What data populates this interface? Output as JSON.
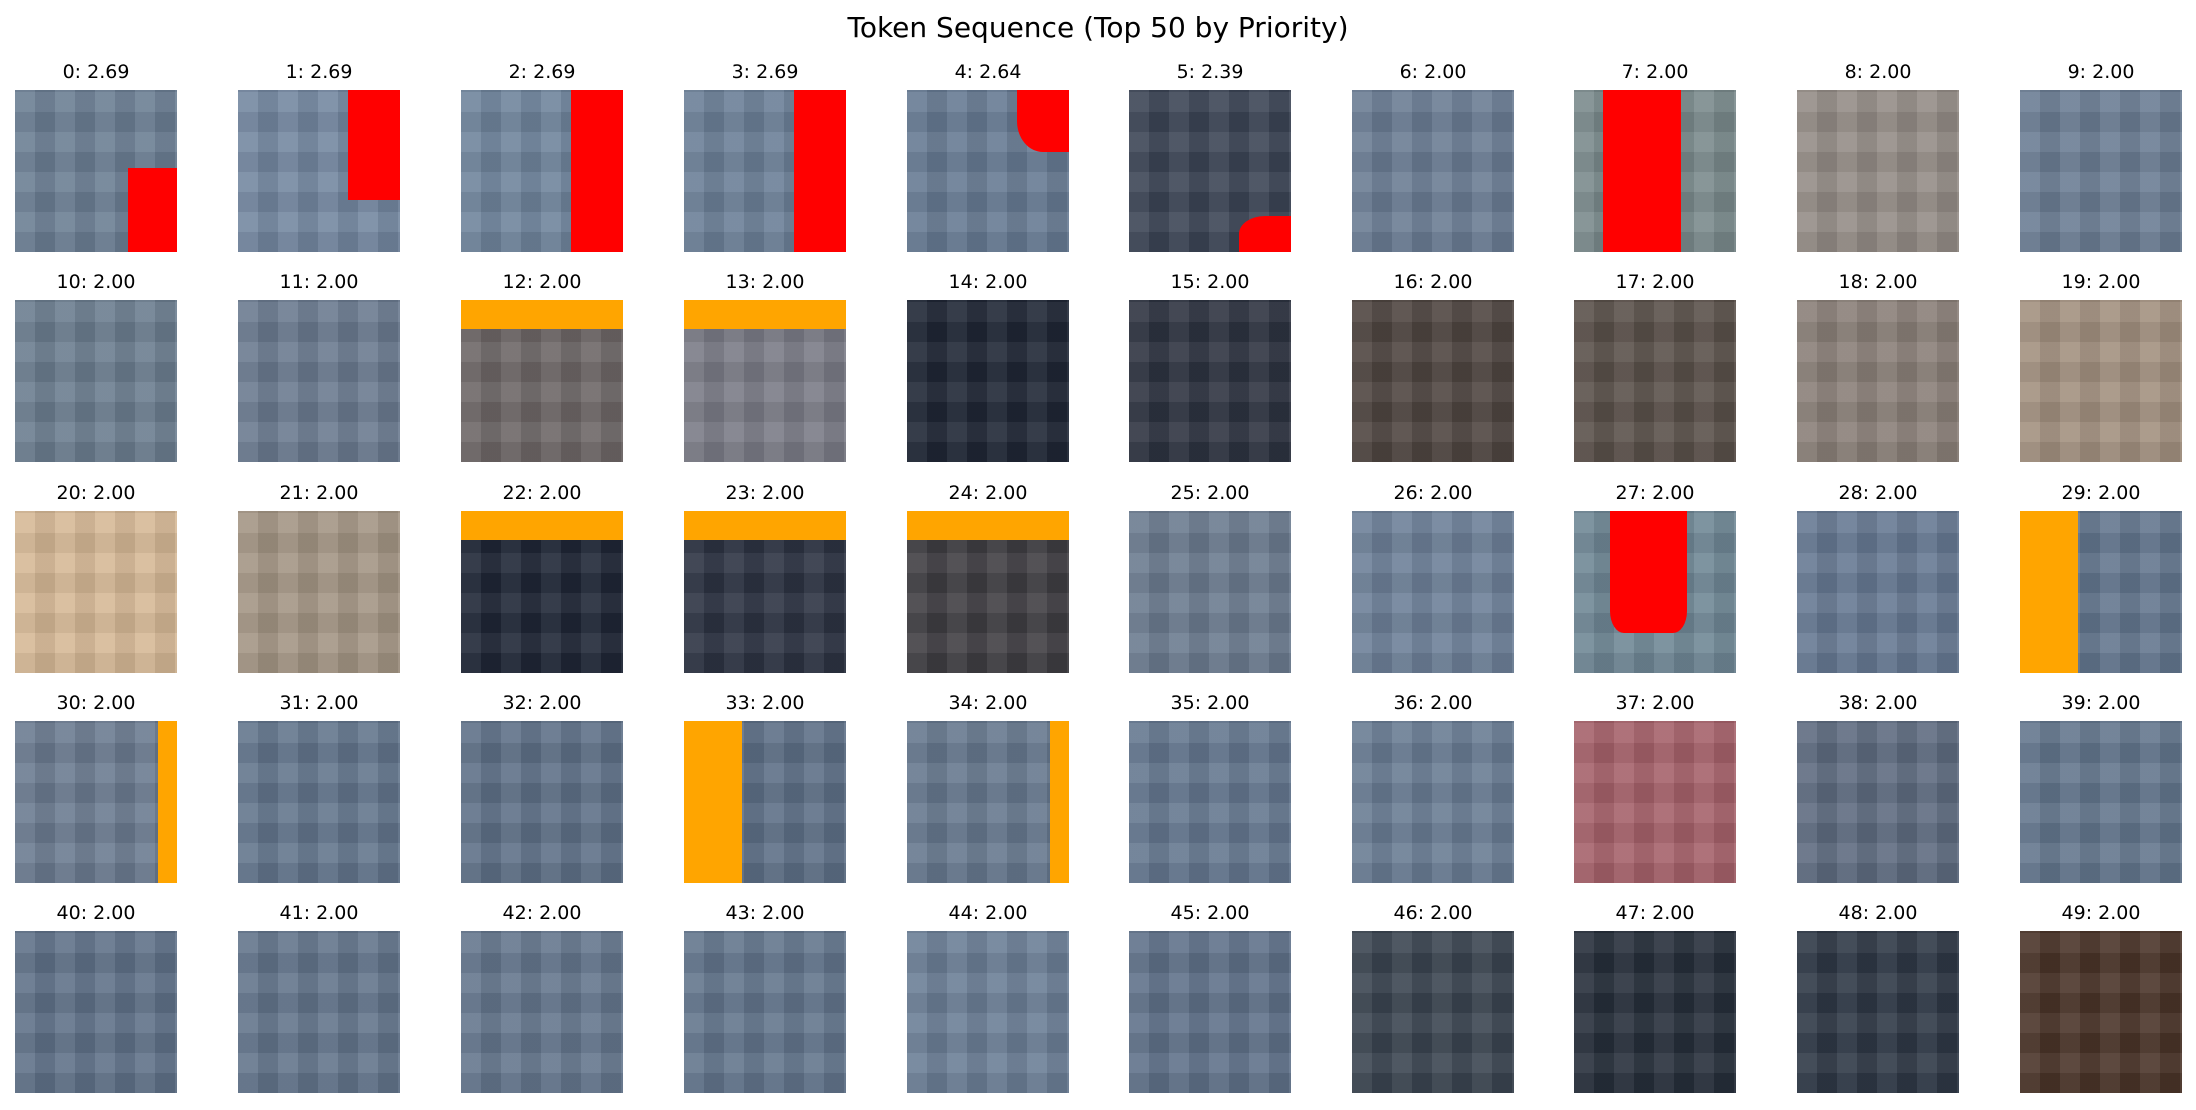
{
  "title": "Token Sequence (Top 50 by Priority)",
  "tokens": [
    {
      "label": "0: 2.69",
      "base": "#6b7e93",
      "overlay": {
        "type": "br",
        "color": "#ff0000"
      }
    },
    {
      "label": "1: 2.69",
      "base": "#7387a0",
      "overlay": {
        "type": "tr",
        "color": "#ff0000"
      }
    },
    {
      "label": "2: 2.69",
      "base": "#6f849c",
      "overlay": {
        "type": "right",
        "color": "#ff0000"
      }
    },
    {
      "label": "3: 2.69",
      "base": "#6b7f97",
      "overlay": {
        "type": "right",
        "color": "#ff0000"
      }
    },
    {
      "label": "4: 2.64",
      "base": "#667a92",
      "overlay": {
        "type": "trblob",
        "color": "#ff0000"
      }
    },
    {
      "label": "5: 2.39",
      "base": "#3b4455",
      "overlay": {
        "type": "brblob",
        "color": "#ff0000"
      }
    },
    {
      "label": "6: 2.00",
      "base": "#6a7c93",
      "overlay": null
    },
    {
      "label": "7: 2.00",
      "base": "#7a8a8c",
      "overlay": {
        "type": "center",
        "color": "#ff0000"
      }
    },
    {
      "label": "8: 2.00",
      "base": "#948c86",
      "overlay": null
    },
    {
      "label": "9: 2.00",
      "base": "#6b7d94",
      "overlay": null
    },
    {
      "label": "10: 2.00",
      "base": "#6b7d8f",
      "overlay": null
    },
    {
      "label": "11: 2.00",
      "base": "#6a7a8f",
      "overlay": null
    },
    {
      "label": "12: 2.00",
      "base": "#6d6666",
      "overlay": {
        "type": "top",
        "color": "#ffa500"
      }
    },
    {
      "label": "13: 2.00",
      "base": "#7a7b86",
      "overlay": {
        "type": "top",
        "color": "#ffa500"
      }
    },
    {
      "label": "14: 2.00",
      "base": "#1f2635",
      "overlay": null
    },
    {
      "label": "15: 2.00",
      "base": "#2d3340",
      "overlay": null
    },
    {
      "label": "16: 2.00",
      "base": "#4e4540",
      "overlay": null
    },
    {
      "label": "17: 2.00",
      "base": "#5a504a",
      "overlay": null
    },
    {
      "label": "18: 2.00",
      "base": "#8a7f78",
      "overlay": null
    },
    {
      "label": "19: 2.00",
      "base": "#a2907f",
      "overlay": null
    },
    {
      "label": "20: 2.00",
      "base": "#d6b896",
      "overlay": null
    },
    {
      "label": "21: 2.00",
      "base": "#a39584",
      "overlay": null
    },
    {
      "label": "22: 2.00",
      "base": "#1f2636",
      "overlay": {
        "type": "top",
        "color": "#ffa500"
      }
    },
    {
      "label": "23: 2.00",
      "base": "#2c3342",
      "overlay": {
        "type": "top",
        "color": "#ffa500"
      }
    },
    {
      "label": "24: 2.00",
      "base": "#3f3d42",
      "overlay": {
        "type": "top",
        "color": "#ffa500"
      }
    },
    {
      "label": "25: 2.00",
      "base": "#6b7b8f",
      "overlay": null
    },
    {
      "label": "26: 2.00",
      "base": "#6d8098",
      "overlay": null
    },
    {
      "label": "27: 2.00",
      "base": "#6f8795",
      "overlay": {
        "type": "centertop",
        "color": "#ff0000"
      }
    },
    {
      "label": "28: 2.00",
      "base": "#667992",
      "overlay": null
    },
    {
      "label": "29: 2.00",
      "base": "#63768e",
      "overlay": {
        "type": "left",
        "color": "#ffa500"
      }
    },
    {
      "label": "30: 2.00",
      "base": "#6b7b90",
      "overlay": {
        "type": "rightthin",
        "color": "#ffa500"
      }
    },
    {
      "label": "31: 2.00",
      "base": "#62758c",
      "overlay": null
    },
    {
      "label": "32: 2.00",
      "base": "#5e7087",
      "overlay": null
    },
    {
      "label": "33: 2.00",
      "base": "#5d6f86",
      "overlay": {
        "type": "left",
        "color": "#ffa500"
      }
    },
    {
      "label": "34: 2.00",
      "base": "#66788e",
      "overlay": {
        "type": "rightthin",
        "color": "#ffa500"
      }
    },
    {
      "label": "35: 2.00",
      "base": "#64778f",
      "overlay": null
    },
    {
      "label": "36: 2.00",
      "base": "#697c93",
      "overlay": null
    },
    {
      "label": "37: 2.00",
      "base": "#a5616a",
      "overlay": null
    },
    {
      "label": "38: 2.00",
      "base": "#5e6b80",
      "overlay": null
    },
    {
      "label": "39: 2.00",
      "base": "#63768d",
      "overlay": null
    },
    {
      "label": "40: 2.00",
      "base": "#5f7188",
      "overlay": null
    },
    {
      "label": "41: 2.00",
      "base": "#62748b",
      "overlay": null
    },
    {
      "label": "42: 2.00",
      "base": "#64768d",
      "overlay": null
    },
    {
      "label": "43: 2.00",
      "base": "#62758c",
      "overlay": null
    },
    {
      "label": "44: 2.00",
      "base": "#6b7e96",
      "overlay": null
    },
    {
      "label": "45: 2.00",
      "base": "#5f7189",
      "overlay": null
    },
    {
      "label": "46: 2.00",
      "base": "#3a4450",
      "overlay": null
    },
    {
      "label": "47: 2.00",
      "base": "#262e3a",
      "overlay": null
    },
    {
      "label": "48: 2.00",
      "base": "#2e3846",
      "overlay": null
    },
    {
      "label": "49: 2.00",
      "base": "#4a3428",
      "overlay": null
    }
  ]
}
